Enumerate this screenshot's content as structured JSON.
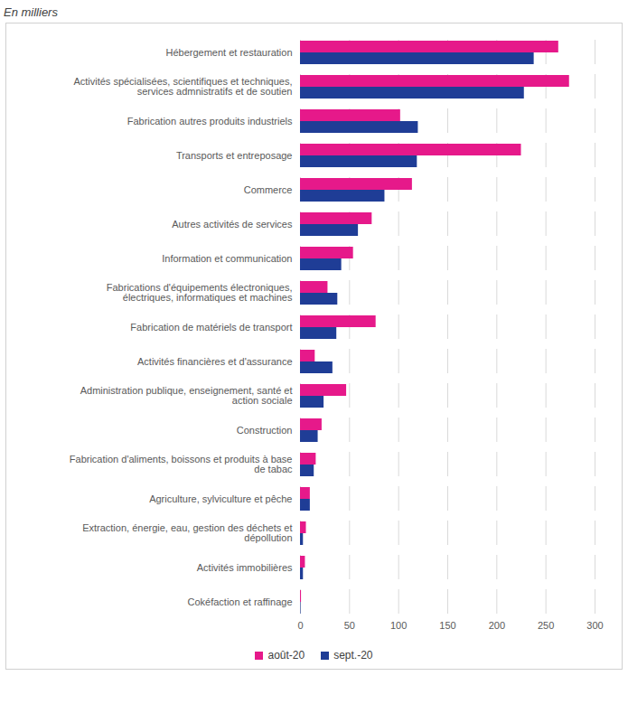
{
  "chart_data": {
    "type": "bar",
    "orientation": "horizontal",
    "subtitle": "En milliers",
    "categories": [
      "Hébergement et restauration",
      "Activités spécialisées, scientifiques et techniques, services admnistratifs et de soutien",
      "Fabrication autres produits industriels",
      "Transports et entreposage",
      "Commerce",
      "Autres activités de services",
      "Information et communication",
      "Fabrications d'équipements électroniques, électriques, informatiques et machines",
      "Fabrication de matériels de transport",
      "Activités financières et d'assurance",
      "Administration publique, enseignement, santé et action sociale",
      "Construction",
      "Fabrication d'aliments, boissons et produits à base de tabac",
      "Agriculture, sylviculture et pêche",
      "Extraction, énergie, eau, gestion des déchets et dépollution",
      "Activités immobilières",
      "Cokéfaction et raffinage"
    ],
    "series": [
      {
        "name": "août-20",
        "color": "#e6198a",
        "values": [
          263,
          274,
          102,
          225,
          114,
          73,
          54,
          28,
          77,
          15,
          47,
          22,
          16,
          10,
          6,
          5,
          1
        ]
      },
      {
        "name": "sept.-20",
        "color": "#1f3d96",
        "values": [
          238,
          228,
          120,
          119,
          86,
          59,
          42,
          38,
          37,
          33,
          24,
          18,
          14,
          10,
          3,
          3,
          0.5
        ]
      }
    ],
    "xlim": [
      0,
      300
    ],
    "xticks": [
      0,
      50,
      100,
      150,
      200,
      250,
      300
    ],
    "grid": true,
    "legend": "bottom"
  }
}
